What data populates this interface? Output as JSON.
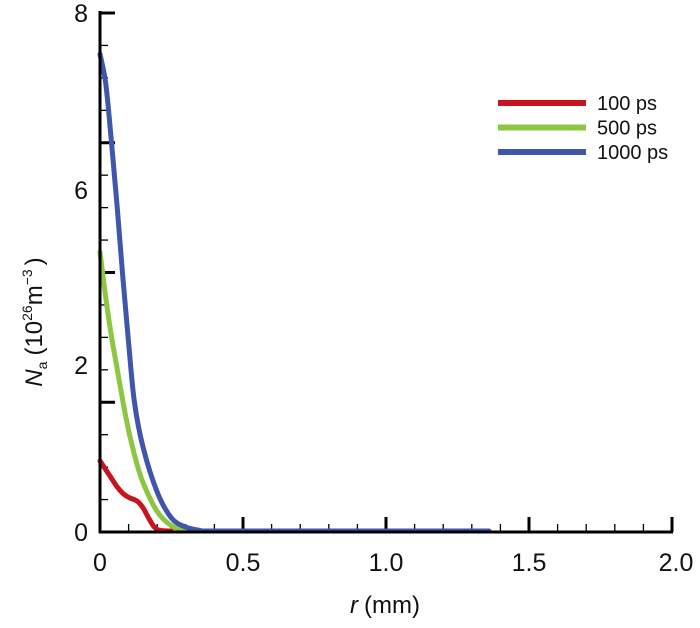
{
  "chart_data": {
    "type": "line",
    "title": "",
    "xlabel": {
      "var": "r",
      "unit": "(mm)"
    },
    "ylabel": {
      "var": "N",
      "sub": "a",
      "unit_open": "(10",
      "exp": "26",
      "unit_mid": "m",
      "exp2": "−3",
      "unit_close": ")"
    },
    "xlim": [
      0,
      2.0
    ],
    "ylim": [
      0,
      8
    ],
    "x_ticks": [
      0,
      0.5,
      1.0,
      1.5,
      2.0
    ],
    "x_tick_labels": [
      "0",
      "0.5",
      "1.0",
      "1.5",
      "2.0"
    ],
    "y_tick_labels": [
      "8",
      "6",
      "2",
      "0"
    ],
    "legend_position": "top-right",
    "series": [
      {
        "name": "100 ps",
        "color": "#c8141e",
        "x": [
          0,
          0.03,
          0.06,
          0.08,
          0.1,
          0.13,
          0.15,
          0.17,
          0.19,
          0.21,
          0.25
        ],
        "y": [
          1.08,
          0.88,
          0.68,
          0.58,
          0.52,
          0.46,
          0.36,
          0.2,
          0.06,
          0.01,
          0
        ]
      },
      {
        "name": "500 ps",
        "color": "#8dc640",
        "x": [
          0,
          0.02,
          0.04,
          0.06,
          0.08,
          0.1,
          0.125,
          0.15,
          0.2,
          0.25,
          0.3,
          0.35
        ],
        "y": [
          4.3,
          3.6,
          3.0,
          2.5,
          2.0,
          1.55,
          1.1,
          0.75,
          0.3,
          0.08,
          0.01,
          0
        ]
      },
      {
        "name": "1000 ps",
        "color": "#3f56aa",
        "x": [
          0,
          0.02,
          0.04,
          0.06,
          0.08,
          0.1,
          0.12,
          0.15,
          0.2,
          0.25,
          0.3,
          0.35,
          0.4,
          1.36
        ],
        "y": [
          7.35,
          6.9,
          6.0,
          5.0,
          3.9,
          2.9,
          2.0,
          1.3,
          0.6,
          0.2,
          0.06,
          0.01,
          0,
          0
        ]
      }
    ]
  }
}
